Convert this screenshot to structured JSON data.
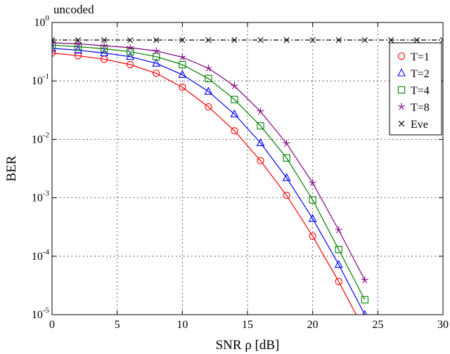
{
  "chart_data": {
    "type": "line",
    "title": "uncoded",
    "xlabel": "SNR ρ  [dB]",
    "ylabel": "BER",
    "xlim": [
      0,
      30
    ],
    "ylim": [
      1e-05,
      1
    ],
    "yscale": "log",
    "grid": true,
    "legend_position": "top-right",
    "x_ticks": [
      0,
      5,
      10,
      15,
      20,
      25,
      30
    ],
    "y_ticks": [
      {
        "value": 1,
        "base": "10",
        "exp": "0"
      },
      {
        "value": 0.1,
        "base": "10",
        "exp": "-1"
      },
      {
        "value": 0.01,
        "base": "10",
        "exp": "-2"
      },
      {
        "value": 0.001,
        "base": "10",
        "exp": "-3"
      },
      {
        "value": 0.0001,
        "base": "10",
        "exp": "-4"
      },
      {
        "value": 1e-05,
        "base": "10",
        "exp": "-5"
      }
    ],
    "series": [
      {
        "name": "T=1",
        "color": "#ff0000",
        "marker": "circle",
        "line": "solid",
        "x": [
          0,
          2,
          4,
          6,
          8,
          10,
          12,
          14,
          16,
          18,
          20,
          22,
          24,
          26,
          28,
          30
        ],
        "y": [
          0.3,
          0.27,
          0.235,
          0.19,
          0.135,
          0.078,
          0.036,
          0.014,
          0.0043,
          0.0011,
          0.00022,
          3.7e-05,
          5.2e-06,
          null,
          null,
          null
        ]
      },
      {
        "name": "T=2",
        "color": "#0000ff",
        "marker": "triangle",
        "line": "solid",
        "x": [
          0,
          2,
          4,
          6,
          8,
          10,
          12,
          14,
          16,
          18,
          20,
          22,
          24,
          26,
          28,
          30
        ],
        "y": [
          0.36,
          0.335,
          0.3,
          0.26,
          0.2,
          0.128,
          0.066,
          0.027,
          0.0087,
          0.0022,
          0.00044,
          7.2e-05,
          1e-05,
          null,
          null,
          null
        ]
      },
      {
        "name": "T=4",
        "color": "#008000",
        "marker": "square",
        "line": "solid",
        "x": [
          0,
          2,
          4,
          6,
          8,
          10,
          12,
          14,
          16,
          18,
          20,
          22,
          24,
          26,
          28,
          30
        ],
        "y": [
          0.41,
          0.385,
          0.355,
          0.315,
          0.26,
          0.19,
          0.11,
          0.048,
          0.017,
          0.0048,
          0.00092,
          0.00013,
          1.8e-05,
          null,
          null,
          null
        ]
      },
      {
        "name": "T=8",
        "color": "#800080",
        "marker": "star",
        "line": "solid",
        "x": [
          0,
          2,
          4,
          6,
          8,
          10,
          12,
          14,
          16,
          18,
          20,
          22,
          24,
          26,
          28,
          30
        ],
        "y": [
          0.45,
          0.43,
          0.4,
          0.37,
          0.325,
          0.255,
          0.165,
          0.082,
          0.03,
          0.0085,
          0.0018,
          0.00028,
          3.9e-05,
          null,
          null,
          null
        ]
      },
      {
        "name": "Eve",
        "color": "#000000",
        "marker": "x",
        "line": "dashdot",
        "x": [
          0,
          2,
          4,
          6,
          8,
          10,
          12,
          14,
          16,
          18,
          20,
          22,
          24,
          26,
          28,
          30
        ],
        "y": [
          0.5,
          0.5,
          0.5,
          0.5,
          0.5,
          0.5,
          0.5,
          0.5,
          0.5,
          0.5,
          0.5,
          0.5,
          0.5,
          0.5,
          0.5,
          0.5
        ]
      }
    ]
  }
}
